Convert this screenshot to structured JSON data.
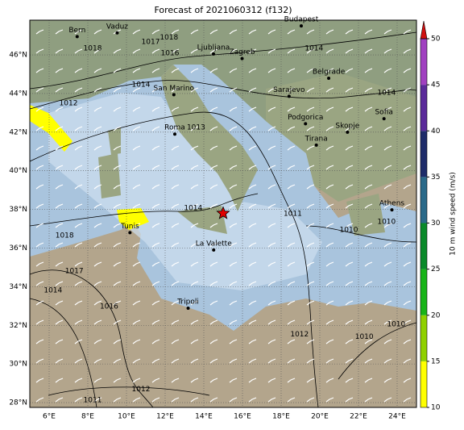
{
  "map": {
    "title": "Forecast of 2021060312 (f132)",
    "lonlim": [
      5,
      25
    ],
    "latlim": [
      27.75,
      47.8
    ],
    "lonticks": [
      {
        "value": 6,
        "label": "6°E"
      },
      {
        "value": 8,
        "label": "8°E"
      },
      {
        "value": 10,
        "label": "10°E"
      },
      {
        "value": 12,
        "label": "12°E"
      },
      {
        "value": 14,
        "label": "14°E"
      },
      {
        "value": 16,
        "label": "16°E"
      },
      {
        "value": 18,
        "label": "18°E"
      },
      {
        "value": 20,
        "label": "20°E"
      },
      {
        "value": 22,
        "label": "22°E"
      },
      {
        "value": 24,
        "label": "24°E"
      }
    ],
    "latticks": [
      {
        "value": 28,
        "label": "28°N"
      },
      {
        "value": 30,
        "label": "30°N"
      },
      {
        "value": 32,
        "label": "32°N"
      },
      {
        "value": 34,
        "label": "34°N"
      },
      {
        "value": 36,
        "label": "36°N"
      },
      {
        "value": 38,
        "label": "38°N"
      },
      {
        "value": 40,
        "label": "40°N"
      },
      {
        "value": 42,
        "label": "42°N"
      },
      {
        "value": 44,
        "label": "44°N"
      },
      {
        "value": 46,
        "label": "46°N"
      }
    ],
    "grid": true,
    "cities": [
      {
        "name": "Bern",
        "lon": 7.45,
        "lat": 46.95
      },
      {
        "name": "Vaduz",
        "lon": 9.52,
        "lat": 47.14
      },
      {
        "name": "Budapest",
        "lon": 19.04,
        "lat": 47.5
      },
      {
        "name": "Ljubljana",
        "lon": 14.5,
        "lat": 46.05
      },
      {
        "name": "Zagreb",
        "lon": 15.98,
        "lat": 45.81
      },
      {
        "name": "San Marino",
        "lon": 12.45,
        "lat": 43.94
      },
      {
        "name": "Belgrade",
        "lon": 20.46,
        "lat": 44.79
      },
      {
        "name": "Sarajevo",
        "lon": 18.41,
        "lat": 43.86
      },
      {
        "name": "Podgorica",
        "lon": 19.26,
        "lat": 42.44
      },
      {
        "name": "Roma",
        "lon": 12.5,
        "lat": 41.9
      },
      {
        "name": "Skopje",
        "lon": 21.43,
        "lat": 42.0
      },
      {
        "name": "Tirana",
        "lon": 19.82,
        "lat": 41.33
      },
      {
        "name": "Sofia",
        "lon": 23.32,
        "lat": 42.7
      },
      {
        "name": "Athens",
        "lon": 23.73,
        "lat": 37.98
      },
      {
        "name": "Tunis",
        "lon": 10.18,
        "lat": 36.8
      },
      {
        "name": "La Valette",
        "lon": 14.51,
        "lat": 35.9
      },
      {
        "name": "Tripoli",
        "lon": 13.19,
        "lat": 32.89
      }
    ],
    "contour_labels": [
      {
        "value": 1018,
        "lon": 12.2,
        "lat": 46.9
      },
      {
        "value": 1017,
        "lon": 11.25,
        "lat": 46.67
      },
      {
        "value": 1016,
        "lon": 12.25,
        "lat": 46.09
      },
      {
        "value": 1018,
        "lon": 8.25,
        "lat": 46.34
      },
      {
        "value": 1014,
        "lon": 19.7,
        "lat": 46.34
      },
      {
        "value": 1014,
        "lon": 23.45,
        "lat": 44.04
      },
      {
        "value": 1014,
        "lon": 10.75,
        "lat": 44.46
      },
      {
        "value": 1012,
        "lon": 7.0,
        "lat": 43.5
      },
      {
        "value": 1013,
        "lon": 13.6,
        "lat": 42.25
      },
      {
        "value": 1014,
        "lon": 13.45,
        "lat": 38.07
      },
      {
        "value": 1011,
        "lon": 18.6,
        "lat": 37.78
      },
      {
        "value": 1010,
        "lon": 21.5,
        "lat": 36.94
      },
      {
        "value": 1010,
        "lon": 23.45,
        "lat": 37.36
      },
      {
        "value": 1018,
        "lon": 6.8,
        "lat": 36.65
      },
      {
        "value": 1017,
        "lon": 7.3,
        "lat": 34.81
      },
      {
        "value": 1014,
        "lon": 6.2,
        "lat": 33.8
      },
      {
        "value": 1016,
        "lon": 9.1,
        "lat": 32.98
      },
      {
        "value": 1012,
        "lon": 18.95,
        "lat": 31.52
      },
      {
        "value": 1010,
        "lon": 22.3,
        "lat": 31.4
      },
      {
        "value": 1010,
        "lon": 23.95,
        "lat": 32.06
      },
      {
        "value": 1012,
        "lon": 10.75,
        "lat": 28.68
      },
      {
        "value": 1011,
        "lon": 8.25,
        "lat": 28.13
      }
    ],
    "marker": {
      "lon": 15.0,
      "lat": 37.8,
      "color": "#e00000"
    },
    "colorbar": {
      "label": "10 m wind speed (m/s)",
      "lim": [
        10,
        50
      ],
      "ticks": [
        10,
        15,
        20,
        25,
        30,
        35,
        40,
        45,
        50
      ],
      "colors": [
        "#ffff00",
        "#8fd000",
        "#18b418",
        "#0a8a2a",
        "#2a6a8a",
        "#1e2c6a",
        "#5a2a9a",
        "#a040c0"
      ],
      "extend_color": "#d01010"
    }
  }
}
